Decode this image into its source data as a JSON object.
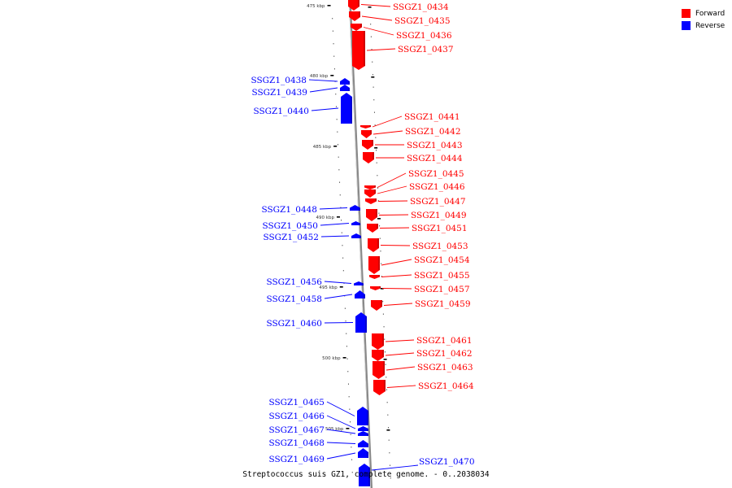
{
  "caption": "Streptococcus suis GZ1, complete genome. - 0..2038034",
  "legend": {
    "forward_label": "Forward",
    "reverse_label": "Reverse",
    "forward_color": "#ff0000",
    "reverse_color": "#0000ff"
  },
  "scale_ticks": [
    "475 kbp",
    "480 kbp",
    "485 kbp",
    "490 kbp",
    "495 kbp",
    "500 kbp",
    "505 kbp"
  ],
  "forward_genes": [
    "SSGZ1_0434",
    "SSGZ1_0435",
    "SSGZ1_0436",
    "SSGZ1_0437",
    "SSGZ1_0441",
    "SSGZ1_0442",
    "SSGZ1_0443",
    "SSGZ1_0444",
    "SSGZ1_0445",
    "SSGZ1_0446",
    "SSGZ1_0447",
    "SSGZ1_0449",
    "SSGZ1_0451",
    "SSGZ1_0453",
    "SSGZ1_0454",
    "SSGZ1_0455",
    "SSGZ1_0457",
    "SSGZ1_0459",
    "SSGZ1_0461",
    "SSGZ1_0462",
    "SSGZ1_0463",
    "SSGZ1_0464"
  ],
  "reverse_genes": [
    "SSGZ1_0438",
    "SSGZ1_0439",
    "SSGZ1_0440",
    "SSGZ1_0448",
    "SSGZ1_0450",
    "SSGZ1_0452",
    "SSGZ1_0456",
    "SSGZ1_0458",
    "SSGZ1_0460",
    "SSGZ1_0465",
    "SSGZ1_0466",
    "SSGZ1_0467",
    "SSGZ1_0468",
    "SSGZ1_0469",
    "SSGZ1_0470"
  ]
}
